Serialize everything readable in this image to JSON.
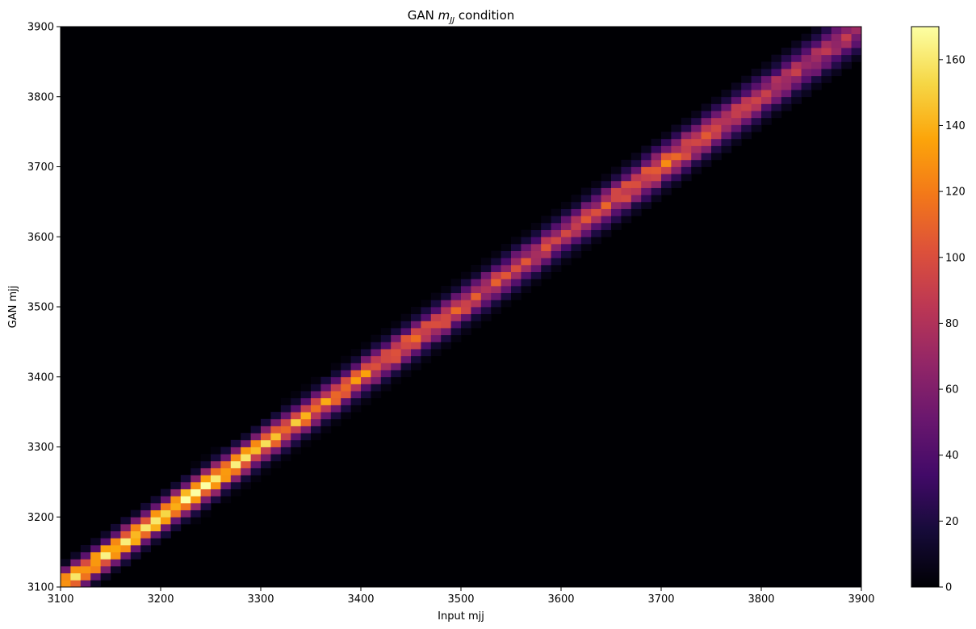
{
  "chart_data": {
    "type": "heatmap",
    "title_main": "GAN ",
    "title_var": "m",
    "title_sub": "JJ",
    "title_rest": " condition",
    "xlabel": "Input mjj",
    "ylabel": "GAN mjj",
    "xlim": [
      3100,
      3900
    ],
    "ylim": [
      3100,
      3900
    ],
    "bins": 80,
    "bin_width": 10,
    "xticks": [
      "3100",
      "3200",
      "3300",
      "3400",
      "3500",
      "3600",
      "3700",
      "3800",
      "3900"
    ],
    "yticks": [
      "3100",
      "3200",
      "3300",
      "3400",
      "3500",
      "3600",
      "3700",
      "3800",
      "3900"
    ],
    "colorbar": {
      "colormap": "inferno",
      "range": [
        0,
        170
      ],
      "ticks": [
        "0",
        "20",
        "40",
        "60",
        "80",
        "100",
        "120",
        "140",
        "160"
      ]
    },
    "grid": false,
    "description_of_ridge": "counts concentrated along the diagonal GAN mjj ≈ Input mjj, peaking near 160-170 below 3300 and decreasing to about 70-90 near 3900",
    "ridge_peak_profile": [
      {
        "input_mjj": 3100,
        "peak": 150
      },
      {
        "input_mjj": 3200,
        "peak": 160
      },
      {
        "input_mjj": 3250,
        "peak": 165
      },
      {
        "input_mjj": 3300,
        "peak": 135
      },
      {
        "input_mjj": 3400,
        "peak": 115
      },
      {
        "input_mjj": 3500,
        "peak": 100
      },
      {
        "input_mjj": 3600,
        "peak": 85
      },
      {
        "input_mjj": 3700,
        "peak": 110
      },
      {
        "input_mjj": 3800,
        "peak": 80
      },
      {
        "input_mjj": 3900,
        "peak": 75
      }
    ]
  }
}
